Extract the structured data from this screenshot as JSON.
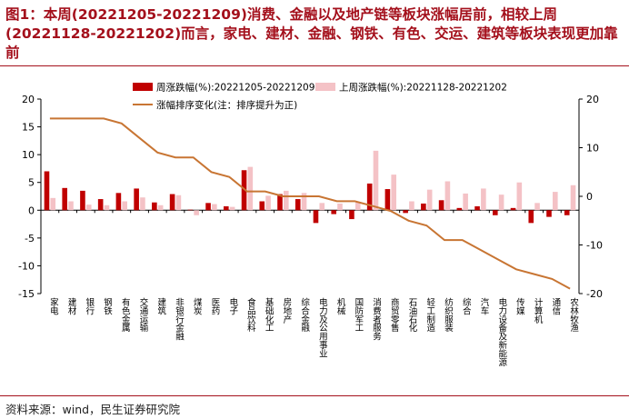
{
  "title": "图1：本周(20221205-20221209)消费、金融以及地产链等板块涨幅居前，相较上周(20221128-20221202)而言，家电、建材、金融、钢铁、有色、交运、建筑等板块表现更加靠前",
  "source": "资料来源：wind，民生证券研究院",
  "colors": {
    "current": "#c00000",
    "previous": "#f4c2c6",
    "line": "#c87533",
    "title": "#a4101c"
  },
  "chart_data": {
    "type": "bar",
    "categories": [
      "家电",
      "建材",
      "银行",
      "钢铁",
      "有色金属",
      "交通运输",
      "建筑",
      "非银行金融",
      "煤炭",
      "医药",
      "电子",
      "食品饮料",
      "基础化工",
      "房地产",
      "综合金融",
      "电力及公用事业",
      "机械",
      "国防军工",
      "消费者服务",
      "商贸零售",
      "石油石化",
      "轻工制造",
      "纺织服装",
      "综合",
      "汽车",
      "电力设备及新能源",
      "传媒",
      "计算机",
      "通信",
      "农林牧渔"
    ],
    "series": [
      {
        "name": "周涨跌幅(%):20221205-20221209",
        "type": "bar",
        "axis": "left",
        "values": [
          7.0,
          4.0,
          3.5,
          2.0,
          3.1,
          3.9,
          1.4,
          2.9,
          0.1,
          1.3,
          0.7,
          7.2,
          1.6,
          2.9,
          2.0,
          -2.3,
          -0.7,
          -1.6,
          4.8,
          3.8,
          -0.5,
          1.2,
          1.8,
          0.4,
          0.7,
          -0.9,
          0.4,
          -2.3,
          -1.2,
          -0.9
        ]
      },
      {
        "name": "上周涨跌幅(%):20221128-20221202",
        "type": "bar",
        "axis": "left",
        "values": [
          2.2,
          1.6,
          1.0,
          0.9,
          1.6,
          2.3,
          0.9,
          2.7,
          -0.9,
          1.1,
          0.6,
          7.8,
          2.6,
          3.5,
          3.1,
          1.3,
          1.2,
          1.4,
          10.7,
          6.4,
          1.6,
          3.7,
          5.2,
          3.0,
          3.9,
          2.8,
          5.0,
          1.3,
          3.3,
          4.5
        ]
      },
      {
        "name": "涨幅排序变化(注：排序提升为正)",
        "type": "line",
        "axis": "right",
        "values": [
          16,
          16,
          16,
          16,
          15,
          12,
          9,
          8,
          8,
          5,
          4,
          1,
          1,
          0,
          0,
          0,
          -1,
          -1,
          -2,
          -3,
          -5,
          -6,
          -9,
          -9,
          -11,
          -13,
          -15,
          -16,
          -17,
          -19
        ]
      }
    ],
    "ylim_left": [
      -15,
      20
    ],
    "ylim_right": [
      -20,
      20
    ],
    "yticks_left": [
      -15,
      -10,
      -5,
      0,
      5,
      10,
      15,
      20
    ],
    "yticks_right": [
      -20,
      -10,
      0,
      10,
      20
    ],
    "legend_position": "top"
  }
}
